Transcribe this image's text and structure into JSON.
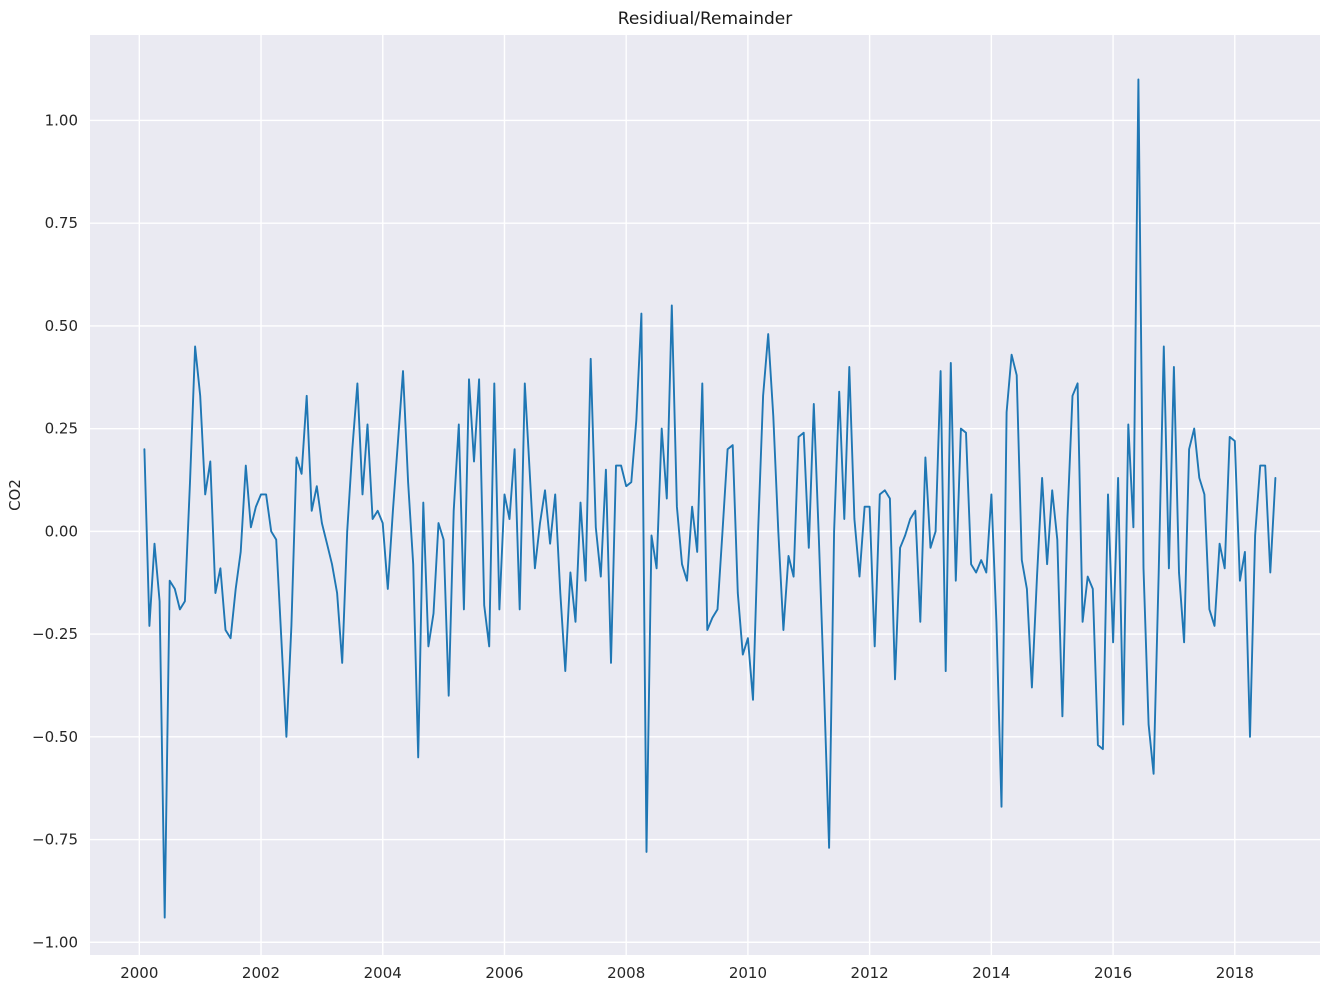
{
  "page": {
    "title": "Residiual/Remainder"
  },
  "chart_data": {
    "type": "line",
    "title": "Residiual/Remainder",
    "xlabel": "",
    "ylabel": "CO2",
    "legend": "none",
    "grid": true,
    "frequency": "monthly",
    "start_month": "2000-02",
    "end_month": "2018-09",
    "x_ticks": [
      2000,
      2002,
      2004,
      2006,
      2008,
      2010,
      2012,
      2014,
      2016,
      2018
    ],
    "y_ticks": [
      -1.0,
      -0.75,
      -0.5,
      -0.25,
      0.0,
      0.25,
      0.5,
      0.75,
      1.0
    ],
    "xlim": [
      1999.19,
      2019.4
    ],
    "ylim": [
      -1.031,
      1.208
    ],
    "line_color": "#1f77b4",
    "plot_bg_color": "#eaeaf2",
    "grid_color": "#ffffff",
    "figure_bg_color": "#ffffff",
    "values": [
      0.2,
      -0.23,
      -0.03,
      -0.17,
      -0.94,
      -0.12,
      -0.14,
      -0.19,
      -0.17,
      0.12,
      0.45,
      0.33,
      0.09,
      0.17,
      -0.15,
      -0.09,
      -0.24,
      -0.26,
      -0.14,
      -0.05,
      0.16,
      0.01,
      0.06,
      0.09,
      0.09,
      0.0,
      -0.02,
      -0.26,
      -0.5,
      -0.23,
      0.18,
      0.14,
      0.33,
      0.05,
      0.11,
      0.02,
      -0.03,
      -0.08,
      -0.15,
      -0.32,
      0.0,
      0.2,
      0.36,
      0.09,
      0.26,
      0.03,
      0.05,
      0.02,
      -0.14,
      0.05,
      0.22,
      0.39,
      0.12,
      -0.08,
      -0.55,
      0.07,
      -0.28,
      -0.2,
      0.02,
      -0.02,
      -0.4,
      0.05,
      0.26,
      -0.19,
      0.37,
      0.17,
      0.37,
      -0.18,
      -0.28,
      0.36,
      -0.19,
      0.09,
      0.03,
      0.2,
      -0.19,
      0.36,
      0.14,
      -0.09,
      0.02,
      0.1,
      -0.03,
      0.09,
      -0.15,
      -0.34,
      -0.1,
      -0.22,
      0.07,
      -0.12,
      0.42,
      0.01,
      -0.11,
      0.15,
      -0.32,
      0.16,
      0.16,
      0.11,
      0.12,
      0.27,
      0.53,
      -0.78,
      -0.01,
      -0.09,
      0.25,
      0.08,
      0.55,
      0.06,
      -0.08,
      -0.12,
      0.06,
      -0.05,
      0.36,
      -0.24,
      -0.21,
      -0.19,
      0.0,
      0.2,
      0.21,
      -0.15,
      -0.3,
      -0.26,
      -0.41,
      0.0,
      0.33,
      0.48,
      0.28,
      0.0,
      -0.24,
      -0.06,
      -0.11,
      0.23,
      0.24,
      -0.04,
      0.31,
      -0.02,
      -0.38,
      -0.77,
      0.0,
      0.34,
      0.03,
      0.4,
      0.03,
      -0.11,
      0.06,
      0.06,
      -0.28,
      0.09,
      0.1,
      0.08,
      -0.36,
      -0.04,
      -0.01,
      0.03,
      0.05,
      -0.22,
      0.18,
      -0.04,
      0.0,
      0.39,
      -0.34,
      0.41,
      -0.12,
      0.25,
      0.24,
      -0.08,
      -0.1,
      -0.07,
      -0.1,
      0.09,
      -0.22,
      -0.67,
      0.29,
      0.43,
      0.38,
      -0.07,
      -0.14,
      -0.38,
      -0.11,
      0.13,
      -0.08,
      0.1,
      -0.02,
      -0.45,
      0.03,
      0.33,
      0.36,
      -0.22,
      -0.11,
      -0.14,
      -0.52,
      -0.53,
      0.09,
      -0.27,
      0.13,
      -0.47,
      0.26,
      0.01,
      1.1,
      -0.09,
      -0.47,
      -0.59,
      -0.1,
      0.45,
      -0.09,
      0.4,
      -0.1,
      -0.27,
      0.2,
      0.25,
      0.13,
      0.09,
      -0.19,
      -0.23,
      -0.03,
      -0.09,
      0.23,
      0.22,
      -0.12,
      -0.05,
      -0.5,
      -0.01,
      0.16,
      0.16,
      -0.1,
      0.13
    ]
  }
}
